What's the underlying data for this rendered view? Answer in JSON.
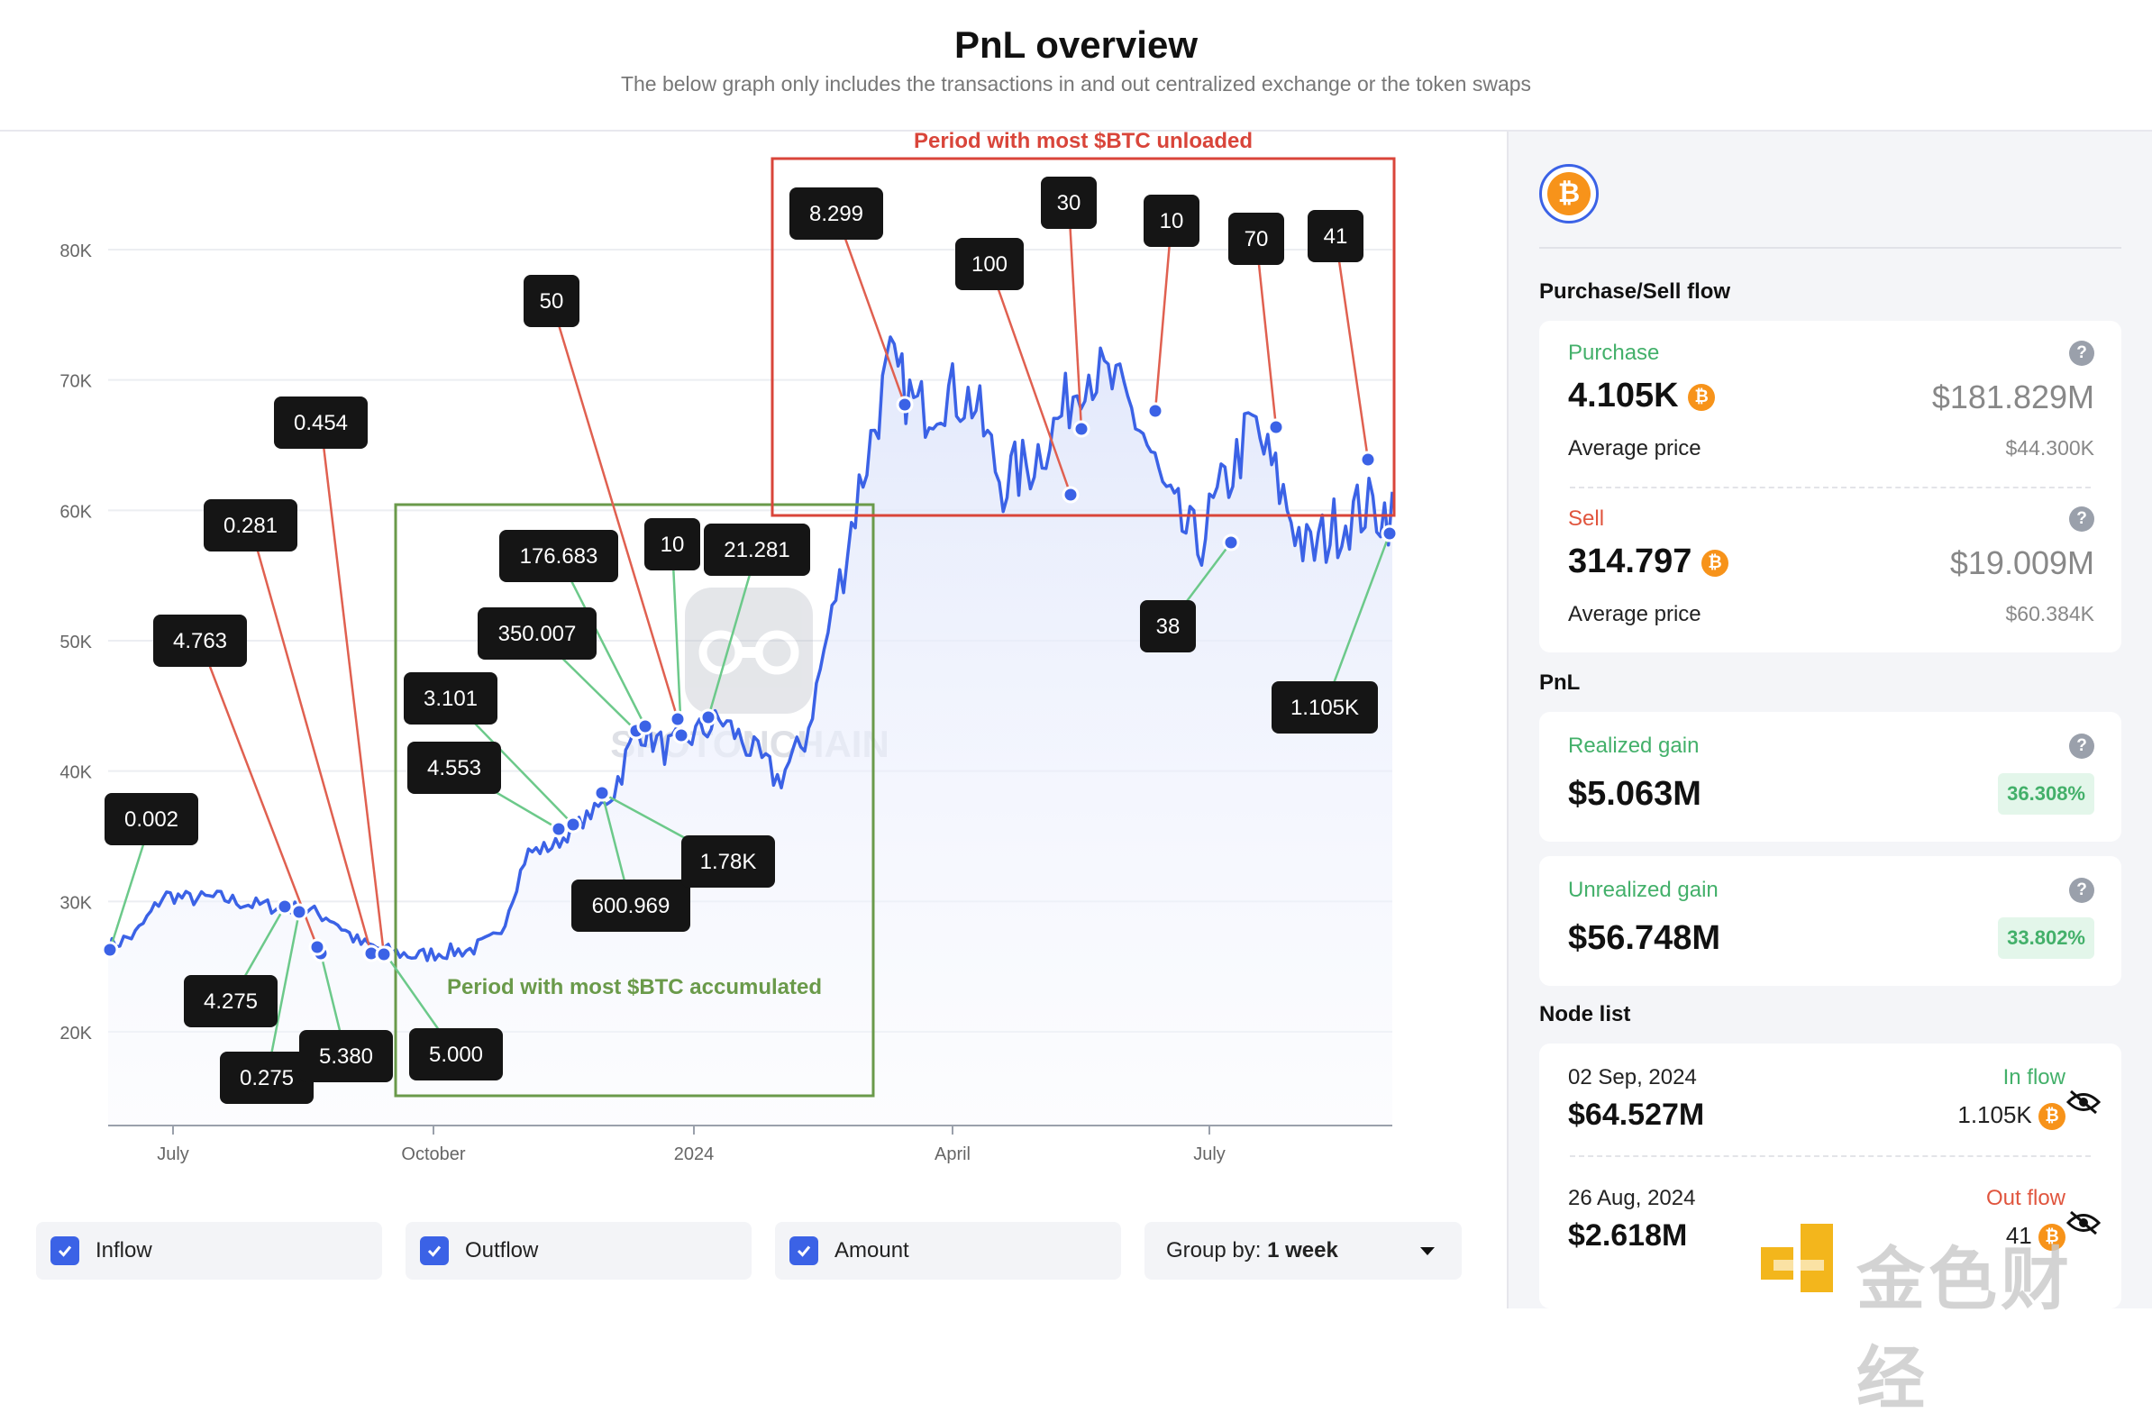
{
  "header": {
    "title": "PnL overview",
    "subtitle": "The below graph only includes the transactions in and out centralized exchange or the token swaps"
  },
  "chart_data": {
    "type": "area",
    "x_ticks": [
      "July",
      "October",
      "2024",
      "April",
      "July"
    ],
    "y_ticks": [
      "20K",
      "30K",
      "40K",
      "50K",
      "60K",
      "70K",
      "80K"
    ],
    "ylim": [
      15000,
      85000
    ],
    "series": [
      {
        "values": [
          26500,
          27500,
          30500,
          30200,
          30300,
          29800,
          29600,
          29400,
          28700,
          26800,
          26200,
          25800,
          26100,
          26300,
          27300,
          33700,
          34300,
          36200,
          38000,
          43400,
          41600,
          42800,
          43900,
          41700,
          39300,
          42500,
          52800,
          62500,
          71200,
          67600,
          69100,
          68400,
          62100,
          63500,
          66700,
          71000,
          69600,
          66400,
          60100,
          57200,
          61800,
          66700,
          61500,
          56500,
          58900,
          60200,
          59800
        ]
      }
    ],
    "annotations": {
      "green_box": "Period with most $BTC accumulated",
      "red_box": "Period with most $BTC unloaded",
      "green_labels": [
        "0.002",
        "4.275",
        "0.275",
        "5.380",
        "5.000",
        "4.553",
        "3.101",
        "350.007",
        "176.683",
        "10",
        "21.281",
        "600.969",
        "1.78K",
        "38",
        "1.105K"
      ],
      "red_labels": [
        "4.763",
        "0.281",
        "0.454",
        "50",
        "8.299",
        "100",
        "30",
        "10",
        "70",
        "41"
      ]
    },
    "watermark": "SPOTONCHAIN",
    "colors": {
      "line": "#3b62e6",
      "inflow": "#6cc98a",
      "outflow": "#e06050",
      "accum_box": "#6a9a4a",
      "unload_box": "#d9453a"
    }
  },
  "controls": {
    "inflow": "Inflow",
    "outflow": "Outflow",
    "amount": "Amount",
    "group_by_label": "Group by:",
    "group_by_value": "1 week"
  },
  "sidebar": {
    "coin_symbol": "₿",
    "flow_title": "Purchase/Sell flow",
    "purchase": {
      "label": "Purchase",
      "amount": "4.105K",
      "usd": "$181.829M",
      "avg_label": "Average price",
      "avg_value": "$44.300K"
    },
    "sell": {
      "label": "Sell",
      "amount": "314.797",
      "usd": "$19.009M",
      "avg_label": "Average price",
      "avg_value": "$60.384K"
    },
    "pnl_title": "PnL",
    "realized": {
      "label": "Realized gain",
      "value": "$5.063M",
      "pct": "36.308%"
    },
    "unrealized": {
      "label": "Unrealized gain",
      "value": "$56.748M",
      "pct": "33.802%"
    },
    "node_title": "Node list",
    "nodes": [
      {
        "date": "02 Sep, 2024",
        "usd": "$64.527M",
        "flow": "In flow",
        "amount": "1.105K"
      },
      {
        "date": "26 Aug, 2024",
        "usd": "$2.618M",
        "flow": "Out flow",
        "amount": "41"
      }
    ]
  },
  "watermark": "金色财经"
}
